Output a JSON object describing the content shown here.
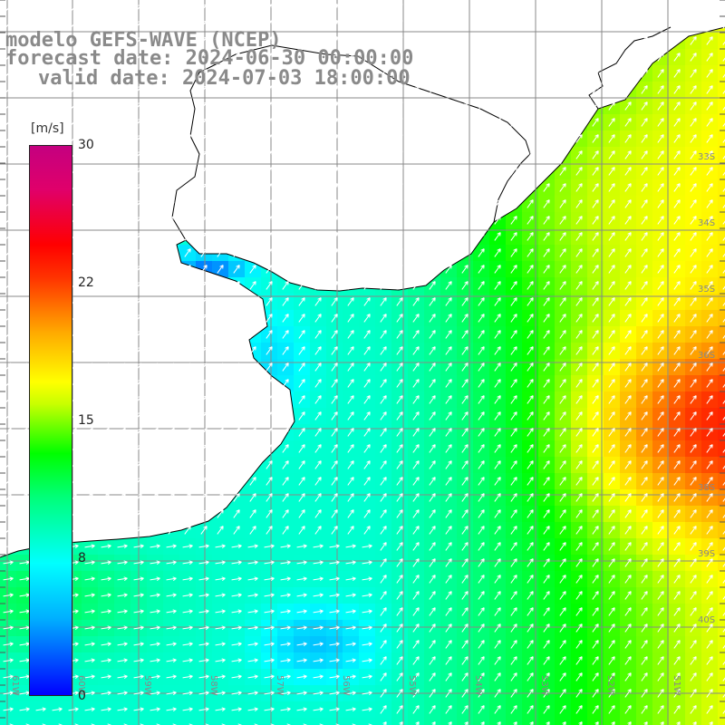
{
  "header": {
    "line1": "modelo GEFS-WAVE (NCEP)",
    "line2": "forecast date: 2024-06-30 00:00:00",
    "line3": "valid date: 2024-07-03 18:00:00"
  },
  "colorbar": {
    "units": "[m/s]",
    "min": 0,
    "max": 30,
    "ticks": [
      "30",
      "22",
      "15",
      "8",
      "0"
    ],
    "colors": [
      "#0000ff",
      "#00b0ff",
      "#00ffff",
      "#00ff7a",
      "#00ff00",
      "#c8ff00",
      "#ffff00",
      "#ffaa00",
      "#ff3300",
      "#ff0000",
      "#e0006a",
      "#c40080"
    ]
  },
  "map": {
    "latitude_labels": [
      "33S",
      "34S",
      "35S",
      "36S",
      "38S",
      "39S",
      "40S"
    ],
    "longitude_labels": [
      "61W",
      "60W",
      "59W",
      "58W",
      "57W",
      "56W",
      "55W",
      "54W",
      "53W",
      "52W",
      "51W"
    ],
    "land_color": "#ffffff",
    "coastline_color": "#000000",
    "grid_color": "#888888",
    "arrow_color": "#ffffff"
  }
}
